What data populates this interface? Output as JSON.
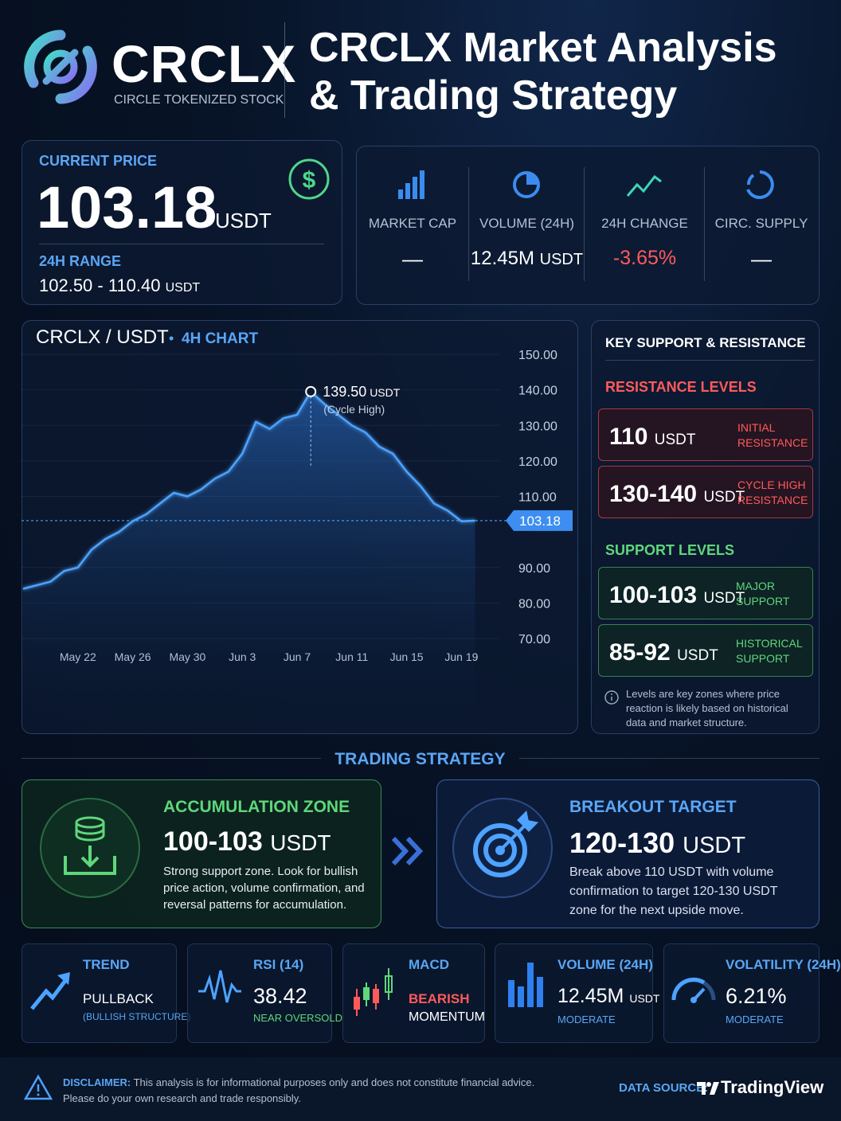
{
  "header": {
    "brand": "CRCLX",
    "brand_sub": "CIRCLE TOKENIZED STOCK",
    "title_line1": "CRCLX Market Analysis",
    "title_line2": "& Trading Strategy"
  },
  "price": {
    "label": "CURRENT PRICE",
    "value": "103.18",
    "unit": "USDT",
    "range_label": "24H RANGE",
    "range": "102.50 - 110.40",
    "range_unit": "USDT"
  },
  "stats": [
    {
      "label": "MARKET CAP",
      "value": "—"
    },
    {
      "label": "VOLUME (24H)",
      "value": "12.45M",
      "unit": "USDT"
    },
    {
      "label": "24H CHANGE",
      "value": "-3.65%"
    },
    {
      "label": "CIRC. SUPPLY",
      "value": "—"
    }
  ],
  "chart_data": {
    "type": "line",
    "title": "CRCLX / USDT",
    "subtitle": "4H CHART",
    "categories": [
      null,
      null,
      null,
      null,
      "May 22",
      null,
      null,
      null,
      "May 26",
      null,
      null,
      null,
      "May 30",
      null,
      null,
      null,
      "Jun 3",
      null,
      null,
      null,
      "Jun 7",
      null,
      null,
      null,
      "Jun 11",
      null,
      null,
      null,
      "Jun 15",
      null,
      null,
      null,
      "Jun 19",
      null
    ],
    "values": [
      84,
      85,
      86,
      89,
      90,
      95,
      98,
      100,
      103,
      105,
      108,
      111,
      110,
      112,
      115,
      117,
      122,
      131,
      129,
      132,
      133,
      139.5,
      136,
      133,
      130,
      128,
      124,
      122,
      117,
      113,
      108,
      106,
      103,
      103.18
    ],
    "color": "#4da3ff",
    "ylim": [
      70,
      150
    ],
    "yticks": [
      {
        "value": 150,
        "label": "150.00"
      },
      {
        "value": 140,
        "label": "140.00"
      },
      {
        "value": 130,
        "label": "130.00"
      },
      {
        "value": 120,
        "label": "120.00"
      },
      {
        "value": 110,
        "label": "110.00"
      },
      {
        "value": 90,
        "label": "90.00"
      },
      {
        "value": 80,
        "label": "80.00"
      },
      {
        "value": 70,
        "label": "70.00"
      }
    ],
    "grid": true,
    "price_line": 103.18,
    "annotation": {
      "value": 139.5,
      "label": "139.50",
      "unit": "USDT",
      "note": "(Cycle High)"
    }
  },
  "levels": {
    "title": "KEY SUPPORT & RESISTANCE",
    "resistance_title": "RESISTANCE LEVELS",
    "resistance": [
      {
        "value": "110",
        "unit": "USDT",
        "note": "INITIAL RESISTANCE"
      },
      {
        "value": "130-140",
        "unit": "USDT",
        "note": "CYCLE HIGH RESISTANCE"
      }
    ],
    "support_title": "SUPPORT LEVELS",
    "support": [
      {
        "value": "100-103",
        "unit": "USDT",
        "note": "MAJOR SUPPORT"
      },
      {
        "value": "85-92",
        "unit": "USDT",
        "note": "HISTORICAL SUPPORT"
      }
    ],
    "info": "Levels are key zones where price reaction is likely based on historical data and market structure."
  },
  "strategy": {
    "title": "TRADING STRATEGY",
    "cards": [
      {
        "title": "ACCUMULATION ZONE",
        "value": "100-103",
        "unit": "USDT",
        "text": "Strong support zone. Look for bullish price action, volume confirmation, and reversal patterns for accumulation."
      },
      {
        "title": "BREAKOUT TARGET",
        "value": "120-130",
        "unit": "USDT",
        "text": "Break above 110 USDT with volume confirmation to target 120-130 USDT zone for the next upside move."
      }
    ]
  },
  "indicators": [
    {
      "title": "TREND",
      "value": "PULLBACK",
      "note": "(BULLISH STRUCTURE)"
    },
    {
      "title": "RSI (14)",
      "value": "38.42",
      "note": "NEAR OVERSOLD"
    },
    {
      "title": "MACD",
      "value": "BEARISH",
      "note": "MOMENTUM"
    },
    {
      "title": "VOLUME (24H)",
      "value": "12.45M",
      "unit": "USDT",
      "note": "MODERATE"
    },
    {
      "title": "VOLATILITY (24H)",
      "value": "6.21%",
      "note": "MODERATE"
    }
  ],
  "footer": {
    "disclaimer_label": "DISCLAIMER:",
    "disclaimer": "This analysis is for informational purposes only and does not constitute financial advice. Please do your own research and trade responsibly.",
    "source_label": "DATA SOURCE:",
    "source": "TradingView"
  }
}
